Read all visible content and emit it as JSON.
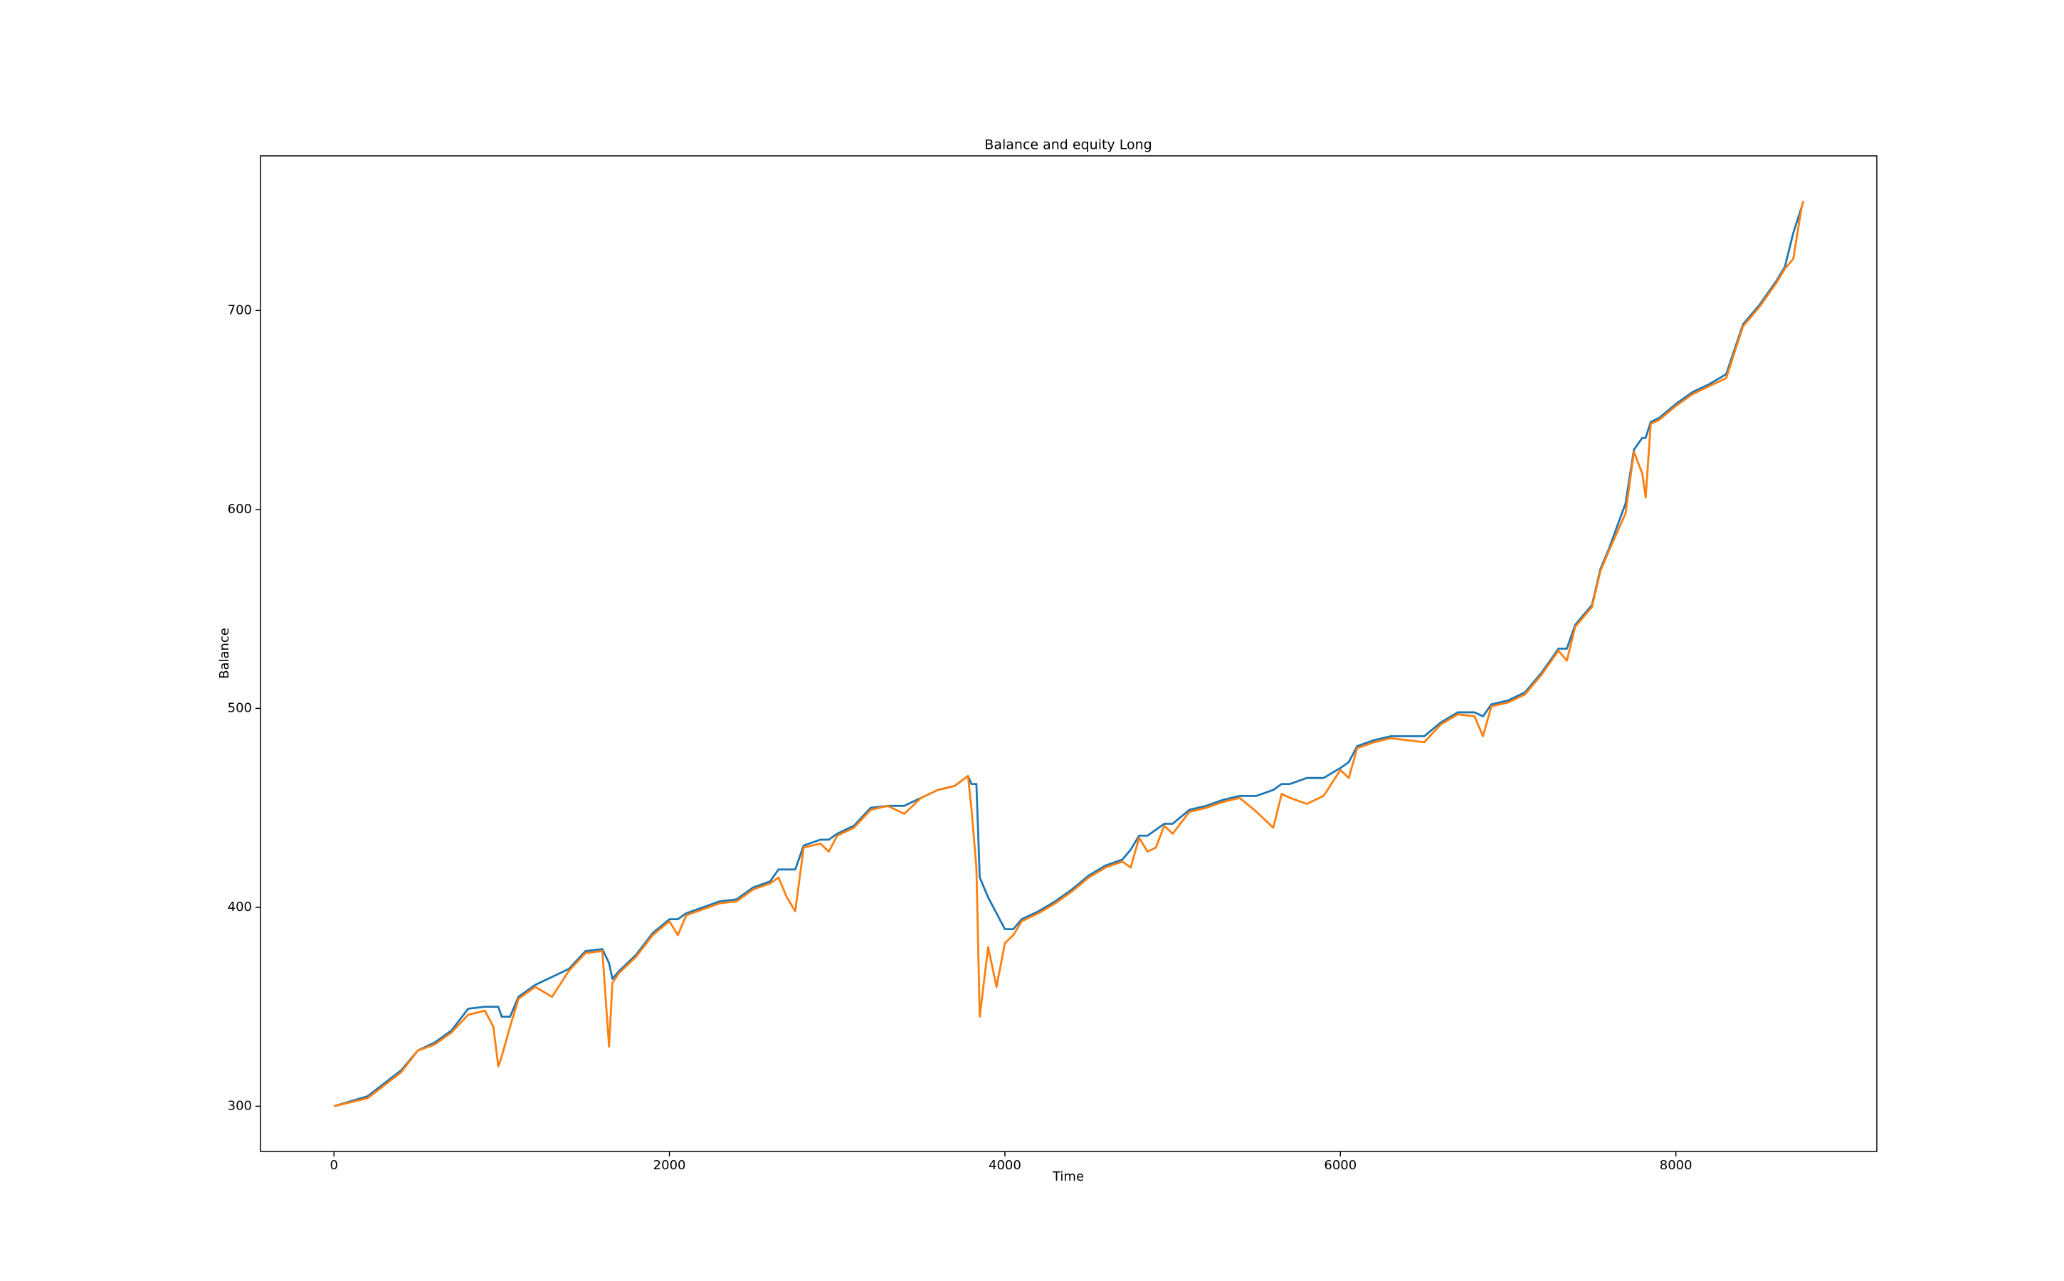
{
  "chart_data": {
    "type": "line",
    "title": "Balance and equity Long",
    "x_label": "Time",
    "y_label": "Balance",
    "x": [
      0,
      200,
      400,
      500,
      600,
      700,
      800,
      900,
      950,
      980,
      1000,
      1050,
      1100,
      1200,
      1300,
      1400,
      1500,
      1600,
      1640,
      1660,
      1700,
      1800,
      1900,
      2000,
      2050,
      2100,
      2200,
      2300,
      2400,
      2500,
      2600,
      2650,
      2700,
      2750,
      2800,
      2900,
      2950,
      3000,
      3100,
      3200,
      3300,
      3400,
      3500,
      3600,
      3700,
      3780,
      3800,
      3830,
      3850,
      3900,
      3950,
      4000,
      4050,
      4100,
      4200,
      4300,
      4400,
      4500,
      4600,
      4700,
      4750,
      4800,
      4850,
      4900,
      4950,
      5000,
      5100,
      5200,
      5300,
      5400,
      5500,
      5600,
      5650,
      5700,
      5800,
      5900,
      6000,
      6050,
      6100,
      6200,
      6300,
      6400,
      6500,
      6600,
      6700,
      6800,
      6850,
      6900,
      7000,
      7100,
      7200,
      7300,
      7350,
      7400,
      7500,
      7550,
      7600,
      7700,
      7750,
      7800,
      7820,
      7850,
      7900,
      8000,
      8100,
      8200,
      8300,
      8400,
      8500,
      8600,
      8650,
      8700,
      8750,
      8760
    ],
    "series": [
      {
        "color": "#1f77b4",
        "values": [
          300,
          305,
          318,
          328,
          332,
          338,
          349,
          350,
          350,
          350,
          345,
          345,
          355,
          361,
          365,
          369,
          378,
          379,
          372,
          364,
          368,
          376,
          387,
          394,
          394,
          397,
          400,
          403,
          404,
          410,
          413,
          419,
          419,
          419,
          431,
          434,
          434,
          437,
          441,
          450,
          451,
          451,
          455,
          459,
          461,
          466,
          462,
          462,
          415,
          405,
          397,
          389,
          389,
          394,
          398,
          403,
          409,
          416,
          421,
          424,
          429,
          436,
          436,
          439,
          442,
          442,
          449,
          451,
          454,
          456,
          456,
          459,
          462,
          462,
          465,
          465,
          470,
          473,
          481,
          484,
          486,
          486,
          486,
          493,
          498,
          498,
          496,
          502,
          504,
          508,
          518,
          530,
          530,
          542,
          552,
          570,
          580,
          603,
          630,
          636,
          636,
          644,
          646,
          653,
          659,
          663,
          668,
          693,
          703,
          715,
          722,
          739,
          752,
          755
        ]
      },
      {
        "color": "#ff7f0e",
        "values": [
          300,
          304,
          317,
          328,
          331,
          337,
          346,
          348,
          340,
          320,
          325,
          340,
          354,
          360,
          355,
          368,
          377,
          378,
          330,
          362,
          367,
          375,
          386,
          393,
          386,
          396,
          399,
          402,
          403,
          409,
          412,
          415,
          405,
          398,
          430,
          432,
          428,
          436,
          440,
          449,
          451,
          447,
          455,
          459,
          461,
          466,
          450,
          420,
          345,
          380,
          360,
          382,
          386,
          393,
          397,
          402,
          408,
          415,
          420,
          423,
          420,
          435,
          428,
          430,
          441,
          437,
          448,
          450,
          453,
          455,
          448,
          440,
          457,
          455,
          452,
          456,
          469,
          465,
          480,
          483,
          485,
          484,
          483,
          492,
          497,
          496,
          486,
          501,
          503,
          507,
          517,
          529,
          524,
          541,
          551,
          569,
          579,
          598,
          629,
          618,
          606,
          643,
          645,
          652,
          658,
          662,
          666,
          692,
          702,
          714,
          721,
          726,
          752,
          755
        ]
      }
    ],
    "xlim": [
      -438,
      9198
    ],
    "ylim": [
      277.25,
      777.75
    ],
    "xticks": [
      0,
      2000,
      4000,
      6000,
      8000
    ],
    "yticks": [
      300,
      400,
      500,
      600,
      700
    ]
  }
}
